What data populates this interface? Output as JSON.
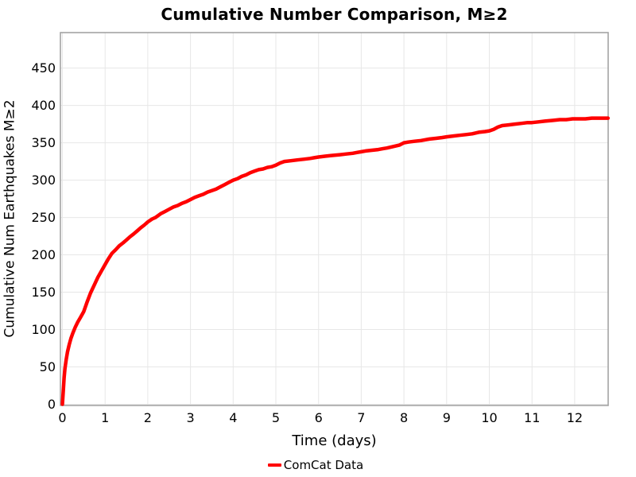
{
  "chart_data": {
    "type": "line",
    "title": "Cumulative Number Comparison, M≥2",
    "xlabel": "Time (days)",
    "ylabel": "Cumulative Num Earthquakes M≥2",
    "xlim": [
      0,
      12.78
    ],
    "ylim": [
      0,
      497
    ],
    "grid": true,
    "legend_position": "bottom-center",
    "x_tick_values": [
      0,
      1,
      2,
      3,
      4,
      5,
      6,
      7,
      8,
      9,
      10,
      11,
      12
    ],
    "x_tick_labels": [
      "0",
      "1",
      "2",
      "3",
      "4",
      "5",
      "6",
      "7",
      "8",
      "9",
      "10",
      "11",
      "12"
    ],
    "y_tick_values": [
      0,
      50,
      100,
      150,
      200,
      250,
      300,
      350,
      400,
      450
    ],
    "y_tick_labels": [
      "0",
      "50",
      "100",
      "150",
      "200",
      "250",
      "300",
      "350",
      "400",
      "450"
    ],
    "series": [
      {
        "name": "ComCat Data",
        "color": "#FF0000",
        "x": [
          0,
          0.02,
          0.04,
          0.06,
          0.09,
          0.12,
          0.16,
          0.2,
          0.25,
          0.3,
          0.36,
          0.42,
          0.5,
          0.58,
          0.66,
          0.75,
          0.83,
          0.92,
          1.0,
          1.08,
          1.16,
          1.25,
          1.33,
          1.42,
          1.5,
          1.58,
          1.67,
          1.75,
          1.83,
          1.92,
          2.0,
          2.1,
          2.18,
          2.3,
          2.4,
          2.5,
          2.6,
          2.7,
          2.8,
          2.9,
          3.0,
          3.1,
          3.2,
          3.3,
          3.4,
          3.5,
          3.6,
          3.7,
          3.8,
          3.9,
          4.0,
          4.1,
          4.2,
          4.3,
          4.4,
          4.5,
          4.6,
          4.7,
          4.8,
          4.9,
          5.0,
          5.1,
          5.2,
          5.35,
          5.5,
          5.65,
          5.8,
          5.9,
          6.0,
          6.15,
          6.3,
          6.5,
          6.65,
          6.8,
          6.9,
          7.0,
          7.1,
          7.25,
          7.4,
          7.5,
          7.6,
          7.75,
          7.9,
          8.0,
          8.1,
          8.25,
          8.4,
          8.5,
          8.6,
          8.75,
          8.9,
          9.0,
          9.15,
          9.3,
          9.45,
          9.6,
          9.75,
          9.9,
          10.0,
          10.1,
          10.2,
          10.3,
          10.45,
          10.6,
          10.75,
          10.9,
          11.0,
          11.15,
          11.3,
          11.5,
          11.65,
          11.8,
          11.95,
          12.1,
          12.25,
          12.4,
          12.55,
          12.7,
          12.78
        ],
        "y": [
          0,
          18,
          35,
          48,
          60,
          70,
          80,
          88,
          96,
          103,
          110,
          116,
          124,
          137,
          149,
          160,
          170,
          179,
          187,
          195,
          202,
          207,
          212,
          216,
          220,
          224,
          228,
          232,
          236,
          240,
          244,
          248,
          250,
          255,
          258,
          261,
          264,
          266,
          269,
          271,
          274,
          277,
          279,
          281,
          284,
          286,
          288,
          291,
          294,
          297,
          300,
          302,
          305,
          307,
          310,
          312,
          314,
          315,
          317,
          318,
          320,
          323,
          325,
          326,
          327,
          328,
          329,
          330,
          331,
          332,
          333,
          334,
          335,
          336,
          337,
          338,
          339,
          340,
          341,
          342,
          343,
          345,
          347,
          350,
          351,
          352,
          353,
          354,
          355,
          356,
          357,
          358,
          359,
          360,
          361,
          362,
          364,
          365,
          366,
          368,
          371,
          373,
          374,
          375,
          376,
          377,
          377,
          378,
          379,
          380,
          381,
          381,
          382,
          382,
          382,
          383,
          383,
          383,
          383
        ]
      }
    ],
    "legend": {
      "items": [
        {
          "label": "ComCat Data",
          "color": "#FF0000",
          "marker": "line"
        }
      ]
    },
    "style": {
      "panel_border_color": "#a3a3a3",
      "gridline_color": "#e7e7e7",
      "text_color": "#000000",
      "background_color": "#ffffff",
      "line_width": 4.5,
      "tick_font_size": 16
    }
  }
}
